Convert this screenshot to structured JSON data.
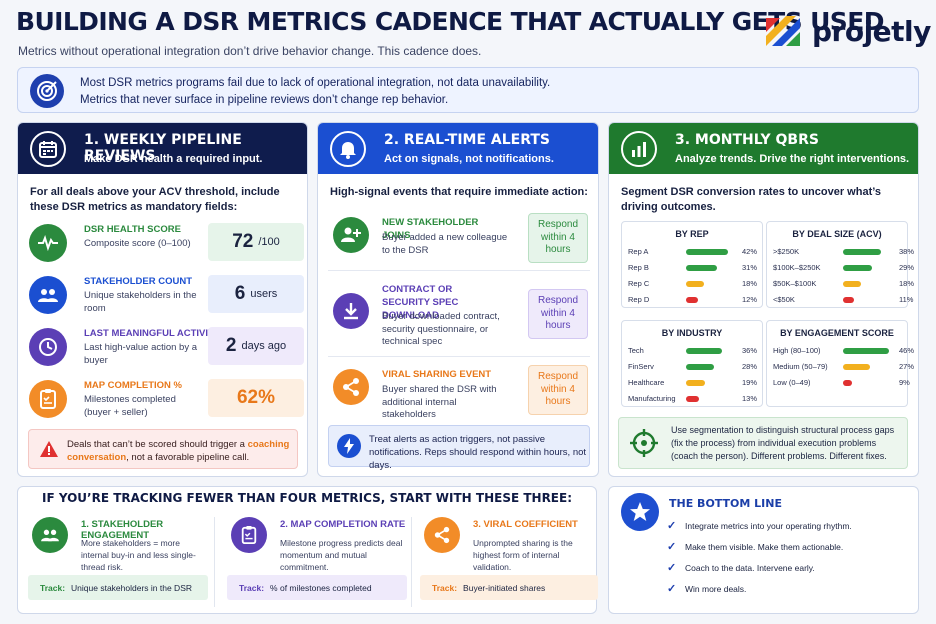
{
  "header": {
    "title": "BUILDING A DSR METRICS CADENCE THAT ACTUALLY GETS USED",
    "subtitle": "Metrics without operational integration don’t drive behavior change. This cadence does.",
    "brand": "projetly"
  },
  "intro": {
    "line1": "Most DSR metrics programs fail due to lack of operational integration, not data unavailability.",
    "line2": "Metrics that never surface in pipeline reviews don’t change rep behavior."
  },
  "col1": {
    "title": "1. WEEKLY PIPELINE REVIEWS",
    "subtitle": "Make DSR health a required input.",
    "intro": "For all deals above your ACV threshold, include these DSR metrics as mandatory fields:",
    "metrics": [
      {
        "label": "DSR HEALTH SCORE",
        "desc": "Composite score (0–100)",
        "value": "72",
        "unit": "/100"
      },
      {
        "label": "STAKEHOLDER COUNT",
        "desc": "Unique stakeholders in the room",
        "value": "6",
        "unit": "users"
      },
      {
        "label": "LAST MEANINGFUL ACTIVITY",
        "desc": "Last high-value action by a buyer",
        "value": "2",
        "unit": "days ago"
      },
      {
        "label": "MAP COMPLETION %",
        "desc": "Milestones completed (buyer + seller)",
        "value": "62%",
        "unit": ""
      }
    ],
    "warn_pre": "Deals that can’t be scored should trigger a ",
    "warn_link": "coaching conversation",
    "warn_post": ", not a favorable pipeline call."
  },
  "col2": {
    "title": "2. REAL-TIME ALERTS",
    "subtitle": "Act on signals, not notifications.",
    "intro": "High-signal events that require immediate action:",
    "alerts": [
      {
        "label": "NEW STAKEHOLDER JOINS",
        "desc": "Buyer added a new colleague to the DSR",
        "respond": "Respond within 4 hours"
      },
      {
        "label": "CONTRACT OR SECURITY SPEC DOWNLOAD",
        "desc": "Buyer downloaded contract, security questionnaire, or technical spec",
        "respond": "Respond within 4 hours"
      },
      {
        "label": "VIRAL SHARING EVENT",
        "desc": "Buyer shared the DSR with additional internal stakeholders",
        "respond": "Respond within 4 hours"
      }
    ],
    "tip": "Treat alerts as action triggers, not passive notifications. Reps should respond within hours, not days."
  },
  "col3": {
    "title": "3. MONTHLY QBRS",
    "subtitle": "Analyze trends. Drive the right interventions.",
    "intro": "Segment DSR conversion rates to uncover what’s driving outcomes.",
    "tip": "Use segmentation to distinguish structural process gaps (fix the process) from individual execution problems (coach the person). Different problems. Different fixes."
  },
  "chart_data": [
    {
      "type": "bar",
      "title": "BY REP",
      "categories": [
        "Rep A",
        "Rep B",
        "Rep C",
        "Rep D"
      ],
      "values": [
        42,
        31,
        18,
        12
      ],
      "unit": "%",
      "colors": [
        "#2f9e44",
        "#2f9e44",
        "#f2b01e",
        "#e03131"
      ]
    },
    {
      "type": "bar",
      "title": "BY DEAL SIZE (ACV)",
      "categories": [
        ">$250K",
        "$100K–$250K",
        "$50K–$100K",
        "<$50K"
      ],
      "values": [
        38,
        29,
        18,
        11
      ],
      "unit": "%",
      "colors": [
        "#2f9e44",
        "#2f9e44",
        "#f2b01e",
        "#e03131"
      ]
    },
    {
      "type": "bar",
      "title": "BY INDUSTRY",
      "categories": [
        "Tech",
        "FinServ",
        "Healthcare",
        "Manufacturing"
      ],
      "values": [
        36,
        28,
        19,
        13
      ],
      "unit": "%",
      "colors": [
        "#2f9e44",
        "#2f9e44",
        "#f2b01e",
        "#e03131"
      ]
    },
    {
      "type": "bar",
      "title": "BY ENGAGEMENT SCORE",
      "categories": [
        "High (80–100)",
        "Medium (50–79)",
        "Low (0–49)"
      ],
      "values": [
        46,
        27,
        9
      ],
      "unit": "%",
      "colors": [
        "#2f9e44",
        "#f2b01e",
        "#e03131"
      ]
    }
  ],
  "start": {
    "title": "IF YOU’RE TRACKING FEWER THAN FOUR METRICS, START WITH THESE THREE:",
    "items": [
      {
        "label": "1. STAKEHOLDER ENGAGEMENT",
        "desc": "More stakeholders = more internal buy-in and less single-thread risk.",
        "track_label": "Track:",
        "track": "Unique stakeholders in the DSR"
      },
      {
        "label": "2. MAP COMPLETION RATE",
        "desc": "Milestone progress predicts deal momentum and mutual commitment.",
        "track_label": "Track:",
        "track": "% of milestones completed"
      },
      {
        "label": "3. VIRAL COEFFICIENT",
        "desc": "Unprompted sharing is the highest form of internal validation.",
        "track_label": "Track:",
        "track": "Buyer-initiated shares"
      }
    ]
  },
  "bottom_line": {
    "title": "THE BOTTOM LINE",
    "items": [
      "Integrate metrics into your operating rhythm.",
      "Make them visible. Make them actionable.",
      "Coach to the data. Intervene early.",
      "Win more deals."
    ]
  },
  "colors": {
    "navy": "#0f1c4d",
    "blue": "#1b4fd1",
    "green": "#1f7a2e",
    "orange": "#f28c28",
    "purple": "#5b3fb5",
    "red": "#e03131"
  }
}
